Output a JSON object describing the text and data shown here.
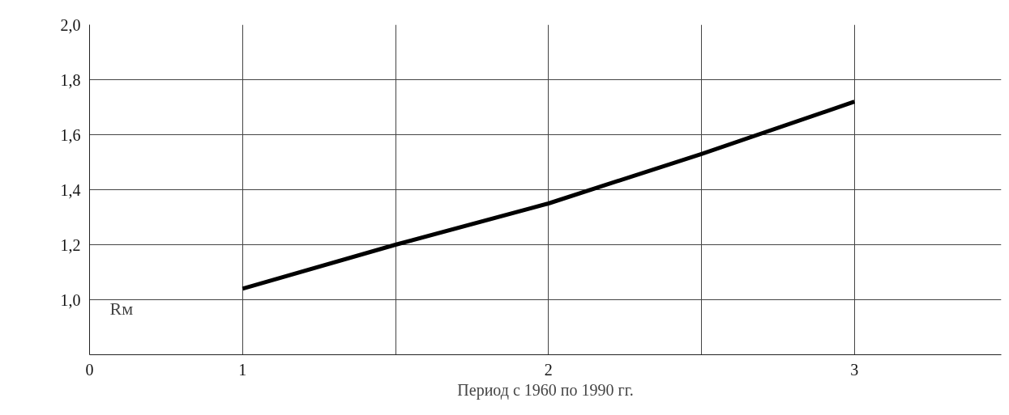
{
  "chart_data": {
    "type": "line",
    "ylabel": "Rм",
    "xlabel": "Период с 1960 по 1990 гг.",
    "x": [
      1,
      1.5,
      2,
      2.5,
      3
    ],
    "series": [
      {
        "color": "#000000",
        "values": [
          1.04,
          1.2,
          1.35,
          1.53,
          1.72
        ]
      }
    ],
    "xlim": [
      0.5,
      3.48
    ],
    "ylim": [
      0.8,
      2.0
    ],
    "xticks": [
      {
        "value": 0.5,
        "label": "0"
      },
      1,
      {
        "value": 1.5,
        "label": null
      },
      2,
      {
        "value": 2.5,
        "label": null
      },
      3
    ],
    "yticks": [
      {
        "value": 0.8,
        "label": null
      },
      {
        "value": 1.0,
        "label": "1,0"
      },
      {
        "value": 1.2,
        "label": "1,2"
      },
      {
        "value": 1.4,
        "label": "1,4"
      },
      {
        "value": 1.6,
        "label": "1,6"
      },
      {
        "value": 1.8,
        "label": "1,8"
      },
      {
        "value": 2.0,
        "label": "2,0"
      }
    ],
    "grid": true,
    "marker": "none",
    "line_style": "solid"
  }
}
